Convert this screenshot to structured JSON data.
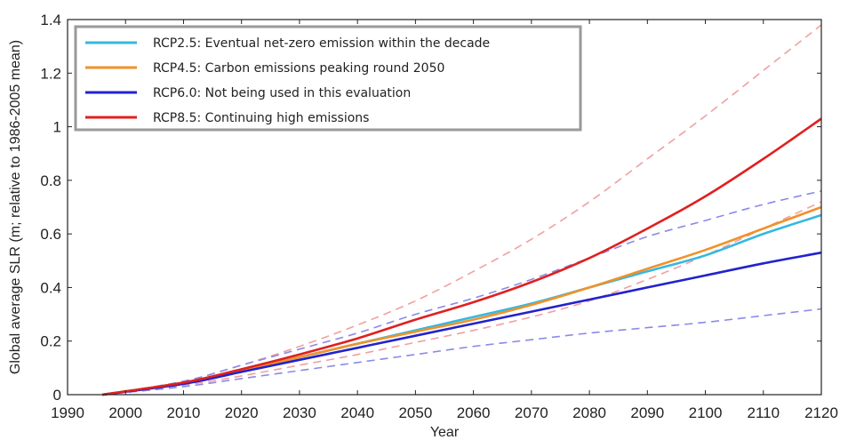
{
  "chart_data": {
    "type": "line",
    "xlabel": "Year",
    "ylabel": "Global average SLR (m; relative to 1986-2005 mean)",
    "xlim": [
      1990,
      2120
    ],
    "ylim": [
      0,
      1.4
    ],
    "xticks": [
      1990,
      2000,
      2010,
      2020,
      2030,
      2040,
      2050,
      2060,
      2070,
      2080,
      2090,
      2100,
      2110,
      2120
    ],
    "yticks": [
      0,
      0.2,
      0.4,
      0.6,
      0.8,
      1,
      1.2,
      1.4
    ],
    "ytick_labels": [
      "0",
      "0.2",
      "0.4",
      "0.6",
      "0.8",
      "1",
      "1.2",
      "1.4"
    ],
    "grid": false,
    "legend_position": "top-left",
    "x": [
      1996,
      2010,
      2020,
      2030,
      2040,
      2050,
      2060,
      2070,
      2080,
      2090,
      2100,
      2110,
      2120
    ],
    "series": [
      {
        "name": "RCP2.5: Eventual net-zero emission within the decade",
        "color": "#35b8e0",
        "values": [
          0,
          0.045,
          0.09,
          0.14,
          0.19,
          0.24,
          0.29,
          0.34,
          0.4,
          0.46,
          0.52,
          0.6,
          0.67
        ]
      },
      {
        "name": "RCP4.5: Carbon emissions peaking round 2050",
        "color": "#f0922a",
        "values": [
          0,
          0.045,
          0.09,
          0.14,
          0.19,
          0.235,
          0.28,
          0.335,
          0.4,
          0.47,
          0.54,
          0.62,
          0.7
        ]
      },
      {
        "name": "RCP6.0: Not being used in this evaluation",
        "color": "#2222cc",
        "values": [
          0,
          0.04,
          0.085,
          0.13,
          0.175,
          0.22,
          0.265,
          0.31,
          0.355,
          0.4,
          0.445,
          0.49,
          0.53
        ]
      },
      {
        "name": "RCP8.5: Continuing high emissions",
        "color": "#e02020",
        "values": [
          0,
          0.045,
          0.095,
          0.15,
          0.21,
          0.28,
          0.345,
          0.42,
          0.51,
          0.62,
          0.74,
          0.88,
          1.03
        ]
      }
    ],
    "bounds": [
      {
        "color": "#f0a0a0",
        "values": [
          0,
          0.05,
          0.11,
          0.18,
          0.26,
          0.35,
          0.46,
          0.58,
          0.72,
          0.88,
          1.04,
          1.21,
          1.38
        ]
      },
      {
        "color": "#f0a0a0",
        "values": [
          0,
          0.035,
          0.07,
          0.11,
          0.15,
          0.195,
          0.24,
          0.29,
          0.35,
          0.43,
          0.52,
          0.62,
          0.72
        ]
      },
      {
        "color": "#8a8ae6",
        "values": [
          0,
          0.05,
          0.11,
          0.17,
          0.23,
          0.3,
          0.36,
          0.43,
          0.51,
          0.59,
          0.65,
          0.71,
          0.76
        ]
      },
      {
        "color": "#8a8ae6",
        "values": [
          0,
          0.03,
          0.06,
          0.09,
          0.12,
          0.15,
          0.18,
          0.205,
          0.23,
          0.25,
          0.27,
          0.295,
          0.32
        ]
      }
    ]
  }
}
